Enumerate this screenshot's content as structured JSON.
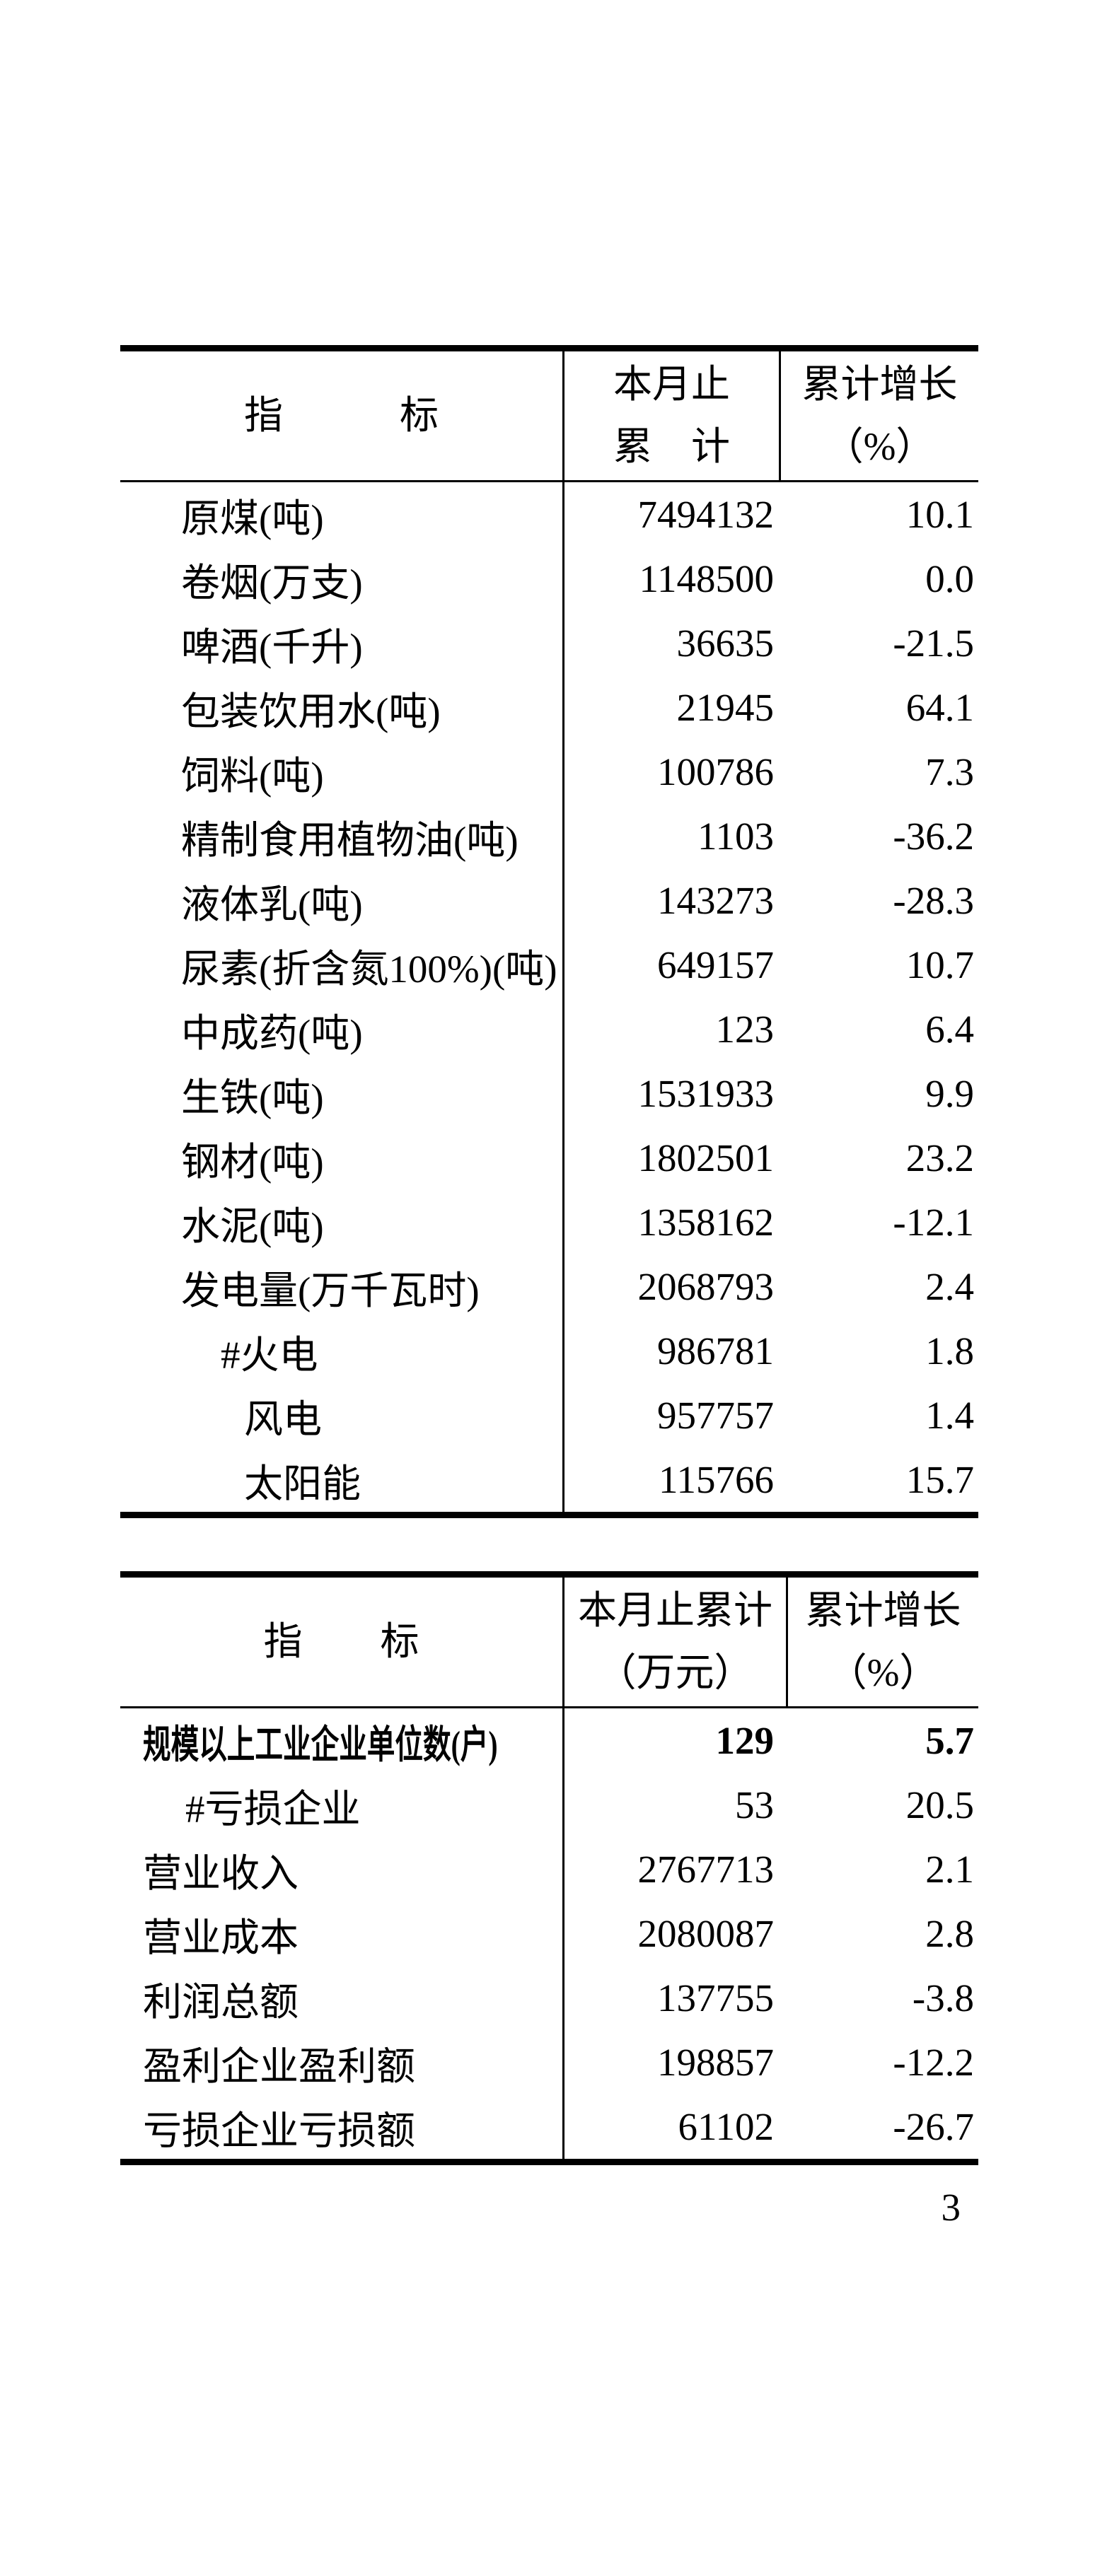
{
  "page_number": "3",
  "table1": {
    "header": {
      "indicator": "指　　　标",
      "value_line1": "本月止",
      "value_line2": "累　计",
      "growth_line1": "累计增长",
      "growth_line2": "（%）"
    },
    "rows": [
      {
        "label": "原煤(吨)",
        "value": "7494132",
        "growth": "10.1"
      },
      {
        "label": "卷烟(万支)",
        "value": "1148500",
        "growth": "0.0"
      },
      {
        "label": "啤酒(千升)",
        "value": "36635",
        "growth": "-21.5"
      },
      {
        "label": "包装饮用水(吨)",
        "value": "21945",
        "growth": "64.1"
      },
      {
        "label": "饲料(吨)",
        "value": "100786",
        "growth": "7.3"
      },
      {
        "label": "精制食用植物油(吨)",
        "value": "1103",
        "growth": "-36.2"
      },
      {
        "label": "液体乳(吨)",
        "value": "143273",
        "growth": "-28.3"
      },
      {
        "label": "尿素(折含氮100%)(吨)",
        "value": "649157",
        "growth": "10.7"
      },
      {
        "label": "中成药(吨)",
        "value": "123",
        "growth": "6.4"
      },
      {
        "label": "生铁(吨)",
        "value": "1531933",
        "growth": "9.9"
      },
      {
        "label": "钢材(吨)",
        "value": "1802501",
        "growth": "23.2"
      },
      {
        "label": "水泥(吨)",
        "value": "1358162",
        "growth": "-12.1"
      },
      {
        "label": "发电量(万千瓦时)",
        "value": "2068793",
        "growth": "2.4"
      },
      {
        "label": "#火电",
        "value": "986781",
        "growth": "1.8"
      },
      {
        "label": "风电",
        "value": "957757",
        "growth": "1.4"
      },
      {
        "label": "太阳能",
        "value": "115766",
        "growth": "15.7"
      }
    ]
  },
  "table2": {
    "header": {
      "indicator": "指　　标",
      "value_line1": "本月止累计",
      "value_line2": "（万元）",
      "growth_line1": "累计增长",
      "growth_line2": "（%）"
    },
    "rows": [
      {
        "label": "规模以上工业企业单位数(户)",
        "value": "129",
        "growth": "5.7"
      },
      {
        "label": "#亏损企业",
        "value": "53",
        "growth": "20.5"
      },
      {
        "label": "营业收入",
        "value": "2767713",
        "growth": "2.1"
      },
      {
        "label": "营业成本",
        "value": "2080087",
        "growth": "2.8"
      },
      {
        "label": "利润总额",
        "value": "137755",
        "growth": "-3.8"
      },
      {
        "label": "盈利企业盈利额",
        "value": "198857",
        "growth": "-12.2"
      },
      {
        "label": "亏损企业亏损额",
        "value": "61102",
        "growth": "-26.7"
      }
    ]
  }
}
